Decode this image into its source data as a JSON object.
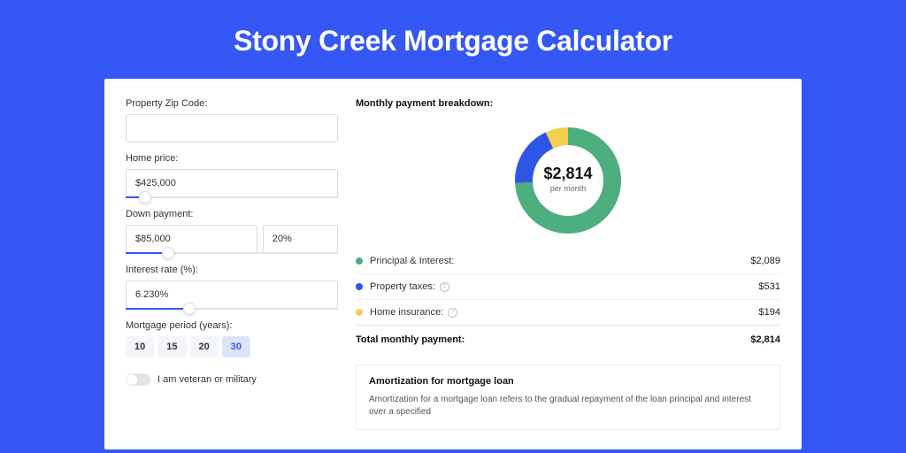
{
  "page": {
    "background_color": "#3457f5",
    "card_background": "#ffffff"
  },
  "hero": {
    "title": "Stony Creek Mortgage Calculator",
    "title_color": "#ffffff",
    "title_fontsize": 32
  },
  "form": {
    "zip_label": "Property Zip Code:",
    "zip_value": "",
    "home_price_label": "Home price:",
    "home_price_value": "$425,000",
    "home_price_slider_pct": 9,
    "down_payment_label": "Down payment:",
    "down_payment_value": "$85,000",
    "down_payment_pct_value": "20%",
    "down_payment_slider_pct": 20,
    "interest_label": "Interest rate (%):",
    "interest_value": "6.230%",
    "interest_slider_pct": 30,
    "period_label": "Mortgage period (years):",
    "period_options": [
      "10",
      "15",
      "20",
      "30"
    ],
    "period_selected_index": 3,
    "veteran_toggle_label": "I am veteran or military",
    "veteran_toggle_on": false,
    "input_border_color": "#dcdcdc",
    "slider_track_color": "#e2e2e2",
    "slider_fill_color": "#3457f5"
  },
  "breakdown": {
    "title": "Monthly payment breakdown:",
    "donut": {
      "type": "donut",
      "center_value": "$2,814",
      "center_sub": "per month",
      "slices": [
        {
          "label": "Principal & Interest",
          "value": 2089,
          "color": "#4caf7d"
        },
        {
          "label": "Property taxes",
          "value": 531,
          "color": "#2f55e6"
        },
        {
          "label": "Home insurance",
          "value": 194,
          "color": "#f4cf4f"
        }
      ],
      "inner_radius": 40,
      "outer_radius": 60,
      "background": "#ffffff"
    },
    "rows": [
      {
        "dot_color": "#4caf7d",
        "label": "Principal & Interest:",
        "amount": "$2,089",
        "help": false
      },
      {
        "dot_color": "#2f55e6",
        "label": "Property taxes:",
        "amount": "$531",
        "help": true
      },
      {
        "dot_color": "#f4cf4f",
        "label": "Home insurance:",
        "amount": "$194",
        "help": true
      }
    ],
    "total_label": "Total monthly payment:",
    "total_amount": "$2,814"
  },
  "amortization": {
    "title": "Amortization for mortgage loan",
    "text": "Amortization for a mortgage loan refers to the gradual repayment of the loan principal and interest over a specified"
  }
}
